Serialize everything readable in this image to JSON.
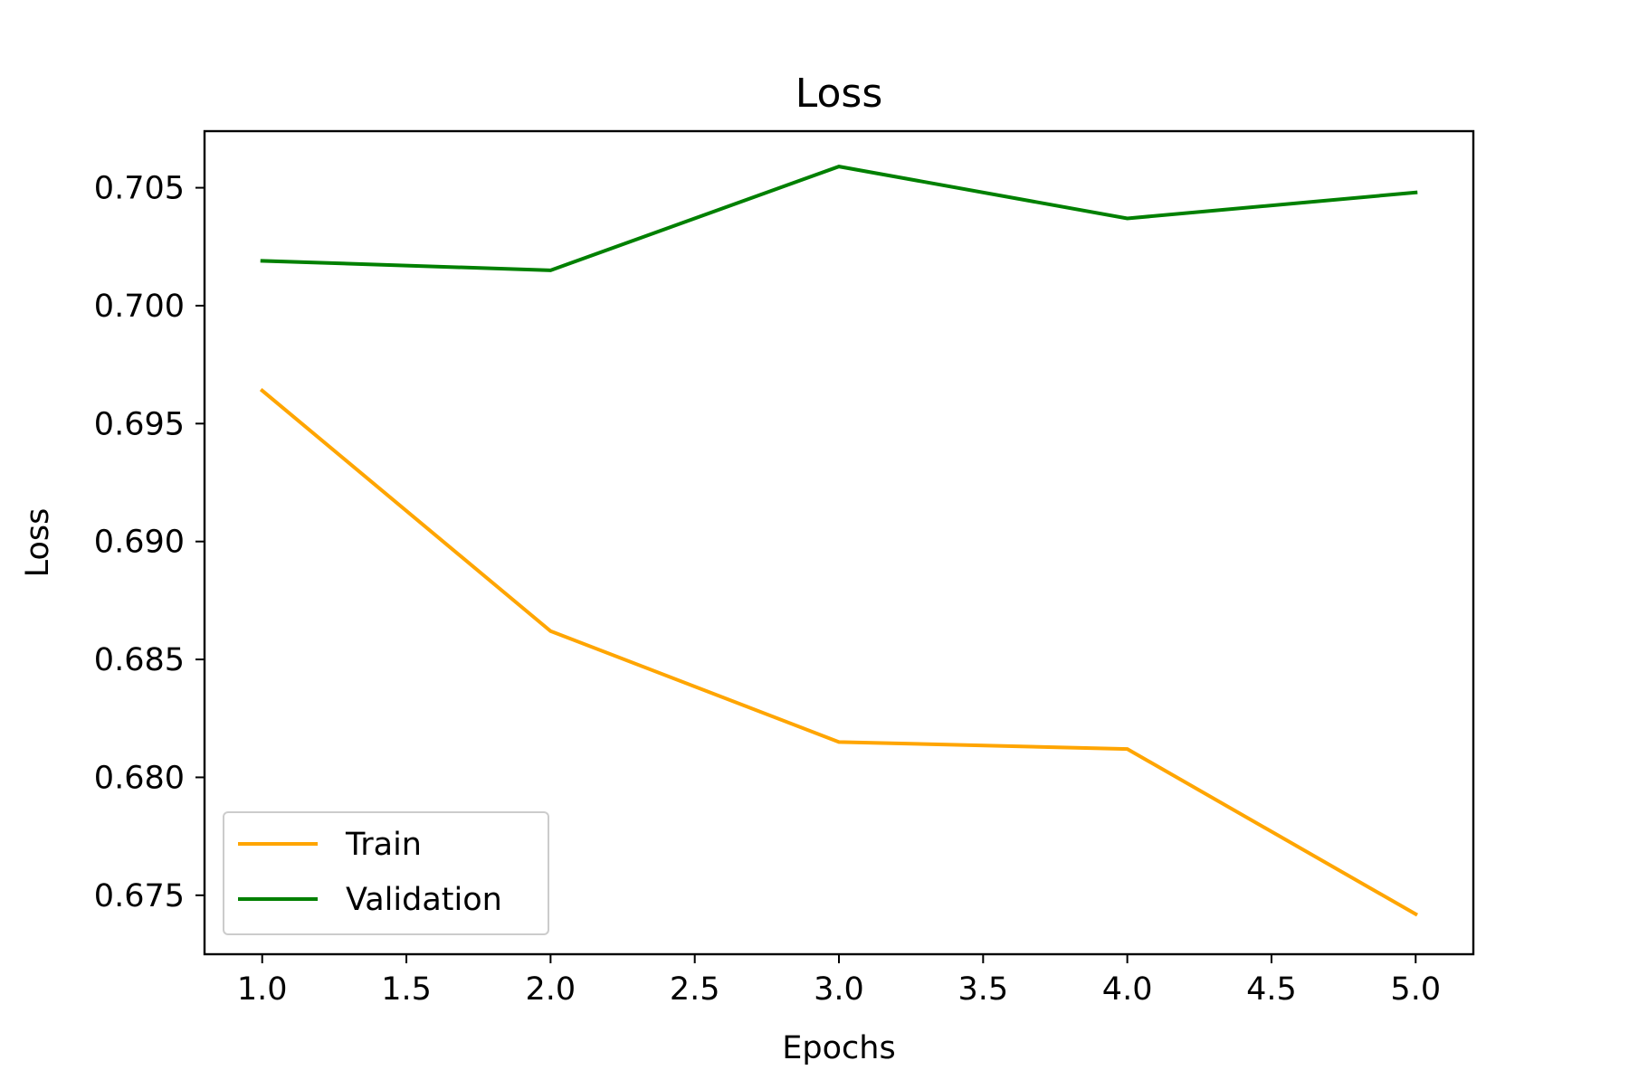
{
  "chart_data": {
    "type": "line",
    "title": "Loss",
    "xlabel": "Epochs",
    "ylabel": "Loss",
    "x": [
      1.0,
      2.0,
      3.0,
      4.0,
      5.0
    ],
    "xlim": [
      0.8,
      5.2
    ],
    "ylim": [
      0.6725,
      0.7074
    ],
    "xticks": [
      1.0,
      1.5,
      2.0,
      2.5,
      3.0,
      3.5,
      4.0,
      4.5,
      5.0
    ],
    "xtick_labels": [
      "1.0",
      "1.5",
      "2.0",
      "2.5",
      "3.0",
      "3.5",
      "4.0",
      "4.5",
      "5.0"
    ],
    "yticks": [
      0.675,
      0.68,
      0.685,
      0.69,
      0.695,
      0.7,
      0.705
    ],
    "ytick_labels": [
      "0.675",
      "0.680",
      "0.685",
      "0.690",
      "0.695",
      "0.700",
      "0.705"
    ],
    "grid": false,
    "legend_position": "lower-left",
    "series": [
      {
        "name": "Train",
        "color": "#FFA500",
        "values": [
          0.6964,
          0.6862,
          0.6815,
          0.6812,
          0.6742
        ]
      },
      {
        "name": "Validation",
        "color": "#008000",
        "values": [
          0.7019,
          0.7015,
          0.7059,
          0.7037,
          0.7048
        ]
      }
    ]
  }
}
